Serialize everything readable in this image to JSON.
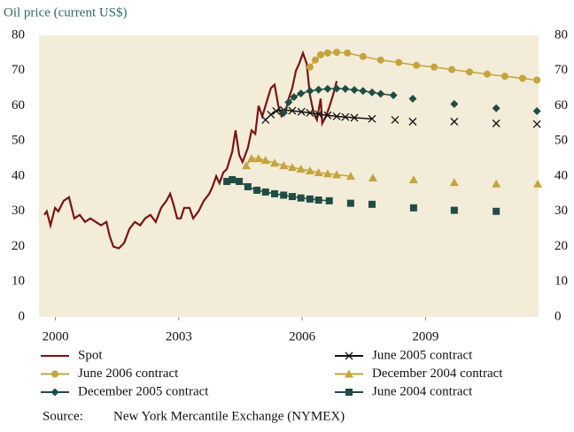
{
  "chart_data": {
    "type": "line",
    "title": "Oil price (current US$)",
    "source_label": "Source:",
    "source": "New York Mercantile Exchange (NYMEX)",
    "xlim": [
      1999.6,
      2011.75
    ],
    "xticks": [
      2000,
      2003,
      2006,
      2009
    ],
    "ylim": [
      0,
      80
    ],
    "yticks": [
      0,
      10,
      20,
      30,
      40,
      50,
      60,
      70,
      80
    ],
    "background": "#f3ecd8",
    "series": [
      {
        "name": "Spot",
        "color": "#7a1414",
        "marker": "none",
        "x": [
          1999.73,
          1999.79,
          1999.88,
          1999.99,
          2000.07,
          2000.2,
          2000.33,
          2000.46,
          2000.59,
          2000.72,
          2000.85,
          2000.98,
          2001.11,
          2001.24,
          2001.32,
          2001.41,
          2001.54,
          2001.67,
          2001.8,
          2001.93,
          2002.06,
          2002.18,
          2002.31,
          2002.44,
          2002.57,
          2002.7,
          2002.79,
          2002.87,
          2002.96,
          2003.05,
          2003.13,
          2003.26,
          2003.35,
          2003.48,
          2003.61,
          2003.74,
          2003.82,
          2003.91,
          2003.99,
          2004.08,
          2004.17,
          2004.3,
          2004.38,
          2004.47,
          2004.55,
          2004.68,
          2004.77,
          2004.86,
          2004.94,
          2005.03,
          2005.16,
          2005.24,
          2005.33,
          2005.42,
          2005.5,
          2005.59,
          2005.67,
          2005.76,
          2005.85,
          2005.93,
          2006.02,
          2006.11,
          2006.19,
          2006.28,
          2006.36,
          2006.45,
          2006.49,
          2006.58,
          2006.67,
          2006.75,
          2006.84
        ],
        "values": [
          29,
          30,
          26,
          31,
          30,
          33,
          34,
          28,
          29,
          27,
          28,
          27,
          26,
          27,
          23,
          20,
          19.5,
          21,
          25,
          27,
          26,
          28,
          29,
          27,
          31,
          33,
          35,
          32,
          28,
          28,
          31,
          31,
          28,
          30,
          33,
          35,
          37,
          40,
          38,
          41,
          42,
          47,
          53,
          46,
          44,
          48,
          53,
          52,
          60,
          57,
          62,
          65,
          66,
          60,
          57,
          58,
          62,
          65,
          70,
          72,
          75,
          72,
          63,
          58,
          56,
          62,
          55,
          57,
          60,
          63,
          67
        ]
      },
      {
        "name": "June 2005 contract",
        "color": "#111111",
        "marker": "x",
        "x": [
          2005.11,
          2005.24,
          2005.37,
          2005.55,
          2005.76,
          2005.98,
          2006.19,
          2006.4,
          2006.62,
          2006.84,
          2007.05,
          2007.27,
          2007.7,
          null,
          2008.26,
          null,
          2008.69,
          null,
          2009.7,
          null,
          2010.72,
          null,
          2011.71
        ],
        "values": [
          56,
          57.5,
          58.5,
          58.8,
          58.6,
          58.3,
          58,
          57.6,
          57.3,
          57,
          56.8,
          56.6,
          56.3,
          null,
          56,
          null,
          55.5,
          null,
          55.5,
          null,
          55,
          null,
          54.8
        ]
      },
      {
        "name": "June 2006 contract",
        "color": "#c4a43c",
        "marker": "circle",
        "x": [
          2006.19,
          2006.32,
          2006.45,
          2006.62,
          2006.84,
          2007.1,
          2007.48,
          2007.91,
          2008.35,
          2008.78,
          2009.21,
          2009.64,
          2010.07,
          2010.5,
          2010.93,
          2011.36,
          2011.71
        ],
        "values": [
          71,
          73,
          74.5,
          75,
          75.2,
          75,
          74,
          73,
          72.3,
          71.5,
          71,
          70.3,
          69.6,
          69,
          68.4,
          67.8,
          67.3
        ]
      },
      {
        "name": "December 2004 contract",
        "color": "#c4a43c",
        "marker": "triangle",
        "x": [
          2004.64,
          2004.77,
          2004.94,
          2005.11,
          2005.33,
          2005.55,
          2005.76,
          2005.97,
          2006.19,
          2006.4,
          2006.62,
          2006.84,
          2007.18,
          null,
          2007.72,
          null,
          2008.71,
          null,
          2009.7,
          null,
          2010.72,
          null,
          2011.73
        ],
        "values": [
          43,
          45,
          45,
          44.5,
          43.7,
          43,
          42.5,
          42,
          41.5,
          41,
          40.7,
          40.4,
          40,
          null,
          39.5,
          null,
          39,
          null,
          38.2,
          null,
          37.8,
          null,
          37.8
        ]
      },
      {
        "name": "December 2005 contract",
        "color": "#1f4d44",
        "marker": "diamond",
        "x": [
          2005.55,
          2005.67,
          2005.8,
          2005.97,
          2006.19,
          2006.4,
          2006.62,
          2006.84,
          2007.05,
          2007.27,
          2007.48,
          2007.7,
          2007.91,
          2008.22,
          null,
          2008.69,
          null,
          2009.7,
          null,
          2010.72,
          null,
          2011.71
        ],
        "values": [
          58,
          61,
          62.5,
          63.5,
          64.2,
          64.6,
          64.8,
          64.9,
          64.8,
          64.5,
          64.2,
          63.8,
          63.4,
          63,
          null,
          62,
          null,
          60.5,
          null,
          59.3,
          null,
          58.5
        ]
      },
      {
        "name": "June 2004 contract",
        "color": "#1f4d44",
        "marker": "square",
        "x": [
          2004.17,
          2004.3,
          2004.47,
          2004.68,
          2004.9,
          2005.11,
          2005.33,
          2005.55,
          2005.76,
          2005.97,
          2006.19,
          2006.4,
          2006.66,
          null,
          2007.18,
          null,
          2007.7,
          null,
          2008.71,
          null,
          2009.7,
          null,
          2010.72
        ],
        "values": [
          38.5,
          39,
          38.5,
          37,
          36,
          35.5,
          35,
          34.6,
          34.2,
          33.8,
          33.5,
          33.2,
          33,
          null,
          32.3,
          null,
          32,
          null,
          31,
          null,
          30.3,
          null,
          30
        ]
      }
    ]
  }
}
